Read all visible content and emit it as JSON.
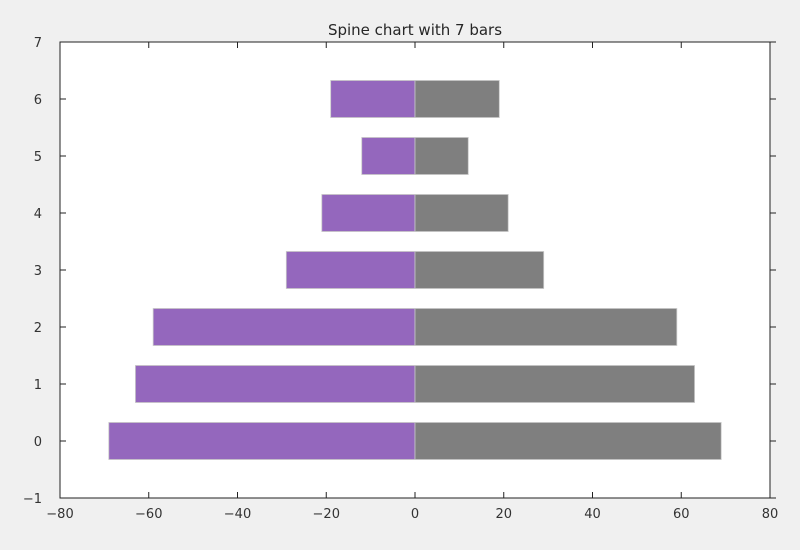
{
  "chart_data": {
    "type": "bar",
    "orientation": "horizontal",
    "title": "Spine chart with 7 bars",
    "xlabel": "",
    "ylabel": "",
    "xlim": [
      -80,
      80
    ],
    "ylim": [
      -1,
      7
    ],
    "x_ticks": [
      -80,
      -60,
      -40,
      -20,
      0,
      20,
      40,
      60,
      80
    ],
    "x_tick_labels": [
      "−80",
      "−60",
      "−40",
      "−20",
      "0",
      "20",
      "40",
      "60",
      "80"
    ],
    "y_ticks": [
      -1,
      0,
      1,
      2,
      3,
      4,
      5,
      6,
      7
    ],
    "y_tick_labels": [
      "−1",
      "0",
      "1",
      "2",
      "3",
      "4",
      "5",
      "6",
      "7"
    ],
    "categories": [
      0,
      1,
      2,
      3,
      4,
      5,
      6
    ],
    "grid": false,
    "series": [
      {
        "color": "#9467bd",
        "values": [
          -69,
          -63,
          -59,
          -29,
          -21,
          -12,
          -19
        ]
      },
      {
        "color": "#7f7f7f",
        "values": [
          69,
          63,
          59,
          29,
          21,
          12,
          19
        ]
      }
    ]
  }
}
